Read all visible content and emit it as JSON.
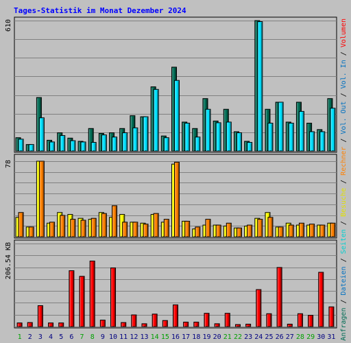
{
  "chart_data": {
    "type": "bar",
    "title": "Tages-Statistik im Monat Dezember 2024",
    "categories": [
      "1",
      "2",
      "3",
      "4",
      "5",
      "6",
      "7",
      "8",
      "9",
      "10",
      "11",
      "12",
      "13",
      "14",
      "15",
      "16",
      "17",
      "18",
      "19",
      "20",
      "21",
      "22",
      "23",
      "24",
      "25",
      "26",
      "27",
      "28",
      "29",
      "30",
      "31"
    ],
    "weekend_days": [
      "1",
      "7",
      "8",
      "14",
      "15",
      "21",
      "22",
      "28",
      "29"
    ],
    "panels": [
      {
        "id": "hits-files",
        "scale_label": "610",
        "ylim": [
          0,
          610
        ],
        "series": [
          {
            "name": "Anfragen",
            "color": "#006c54",
            "values": [
              62,
              30,
              250,
              50,
              85,
              60,
              45,
              105,
              82,
              85,
              105,
              165,
              160,
              300,
              70,
              392,
              135,
              105,
              245,
              140,
              195,
              90,
              45,
              610,
              195,
              228,
              135,
              228,
              130,
              100,
              245
            ]
          },
          {
            "name": "Dateien",
            "color": "#00e0ff",
            "values": [
              55,
              30,
              155,
              42,
              72,
              48,
              42,
              40,
              75,
              65,
              85,
              108,
              160,
              288,
              62,
              330,
              130,
              65,
              195,
              132,
              135,
              85,
              40,
              605,
              130,
              228,
              130,
              185,
              90,
              90,
              200
            ]
          }
        ]
      },
      {
        "id": "visits-pages",
        "scale_label": "78",
        "ylim": [
          0,
          78
        ],
        "series": [
          {
            "name": "Besuche",
            "color": "#ffff00",
            "values": [
              20,
              10,
              78,
              14,
              25,
              23,
              19,
              18,
              25,
              20,
              23,
              15,
              14,
              23,
              15,
              75,
              16,
              8,
              12,
              12,
              11,
              9,
              11,
              19,
              25,
              10,
              14,
              12,
              12,
              12,
              14
            ]
          },
          {
            "name": "Rechner",
            "color": "#ff8000",
            "values": [
              25,
              10,
              78,
              15,
              22,
              18,
              17,
              19,
              24,
              32,
              15,
              15,
              13,
              24,
              18,
              77,
              16,
              10,
              18,
              12,
              14,
              9,
              12,
              18,
              20,
              10,
              12,
              14,
              13,
              12,
              14
            ]
          }
        ]
      },
      {
        "id": "traffic",
        "scale_label": "206.54 KB",
        "ylim": [
          0,
          206.54
        ],
        "series": [
          {
            "name": "Volumen",
            "color": "#ff0000",
            "values": [
              9,
              10,
              52,
              9,
              9,
              139,
              125,
              163,
              16,
              146,
              10,
              29,
              7,
              31,
              15,
              54,
              11,
              11,
              33,
              7,
              33,
              5,
              6,
              92,
              32,
              147,
              6,
              32,
              28,
              135,
              49
            ]
          }
        ]
      }
    ],
    "right_labels": [
      {
        "text": "Anfragen",
        "color": "#006c54"
      },
      {
        "text": "Dateien",
        "color": "#0070c0"
      },
      {
        "text": "Seiten",
        "color": "#00d0d0"
      },
      {
        "text": "Besuche",
        "color": "#e0e000"
      },
      {
        "text": "Rechner",
        "color": "#ff8000"
      },
      {
        "text": "Vol. Out",
        "color": "#0070c0"
      },
      {
        "text": "Vol. In",
        "color": "#0070c0"
      },
      {
        "text": "Volumen",
        "color": "#ff0000"
      }
    ],
    "colors": {
      "background": "#c0c0c0",
      "title": "#0000ff",
      "weekday_label": "#000080",
      "weekend_label": "#00a000",
      "grid": "#808080"
    }
  }
}
